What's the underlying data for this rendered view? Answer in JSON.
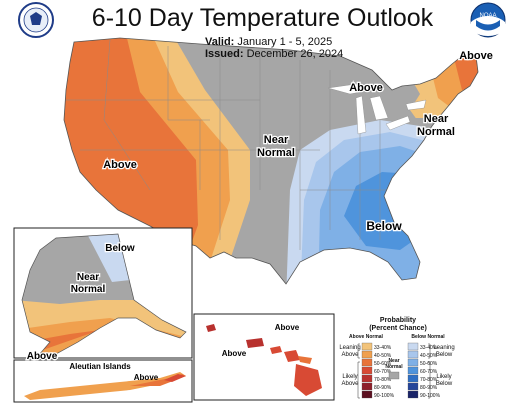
{
  "header": {
    "title": "6-10 Day Temperature Outlook",
    "valid_label": "Valid:",
    "valid_value": "January 1 - 5, 2025",
    "issued_label": "Issued:",
    "issued_value": "December 26, 2024"
  },
  "logos": {
    "left": "department-of-commerce-seal",
    "right": "noaa-logo",
    "noaa_text": "NOAA"
  },
  "map_labels": {
    "west_above": "Above",
    "central_near_normal": [
      "Near",
      "Normal"
    ],
    "great_lakes_above": "Above",
    "maine_above": "Above",
    "northeast_near_normal": [
      "Near",
      "Normal"
    ],
    "southeast_below": "Below",
    "alaska_below": "Below",
    "alaska_near_normal": [
      "Near",
      "Normal"
    ],
    "alaska_above": "Above",
    "aleutian_title": "Aleutian Islands",
    "aleutian_above": "Above",
    "hawaii_above_1": "Above",
    "hawaii_above_2": "Above"
  },
  "legend": {
    "title_line1": "Probability",
    "title_line2": "(Percent Chance)",
    "above_header": "Above Normal",
    "below_header": "Below Normal",
    "near_normal_label": [
      "Near",
      "Normal"
    ],
    "leaning_above": [
      "Leaning",
      "Above"
    ],
    "likely_above": [
      "Likely",
      "Above"
    ],
    "leaning_below": [
      "Leaning",
      "Below"
    ],
    "likely_below": [
      "Likely",
      "Below"
    ],
    "ranges": [
      "33-40%",
      "40-50%",
      "50-60%",
      "60-70%",
      "70-80%",
      "80-90%",
      "90-100%"
    ],
    "above_colors": [
      "#f2c37a",
      "#f0a04e",
      "#e8743a",
      "#d84a34",
      "#b8312e",
      "#8e1f2a",
      "#5c1020"
    ],
    "below_colors": [
      "#c9d9f0",
      "#a8c6ec",
      "#7fb0e6",
      "#4f94dc",
      "#2f6fc4",
      "#24459a",
      "#1a2468"
    ],
    "near_color": "#a6a6a6"
  }
}
